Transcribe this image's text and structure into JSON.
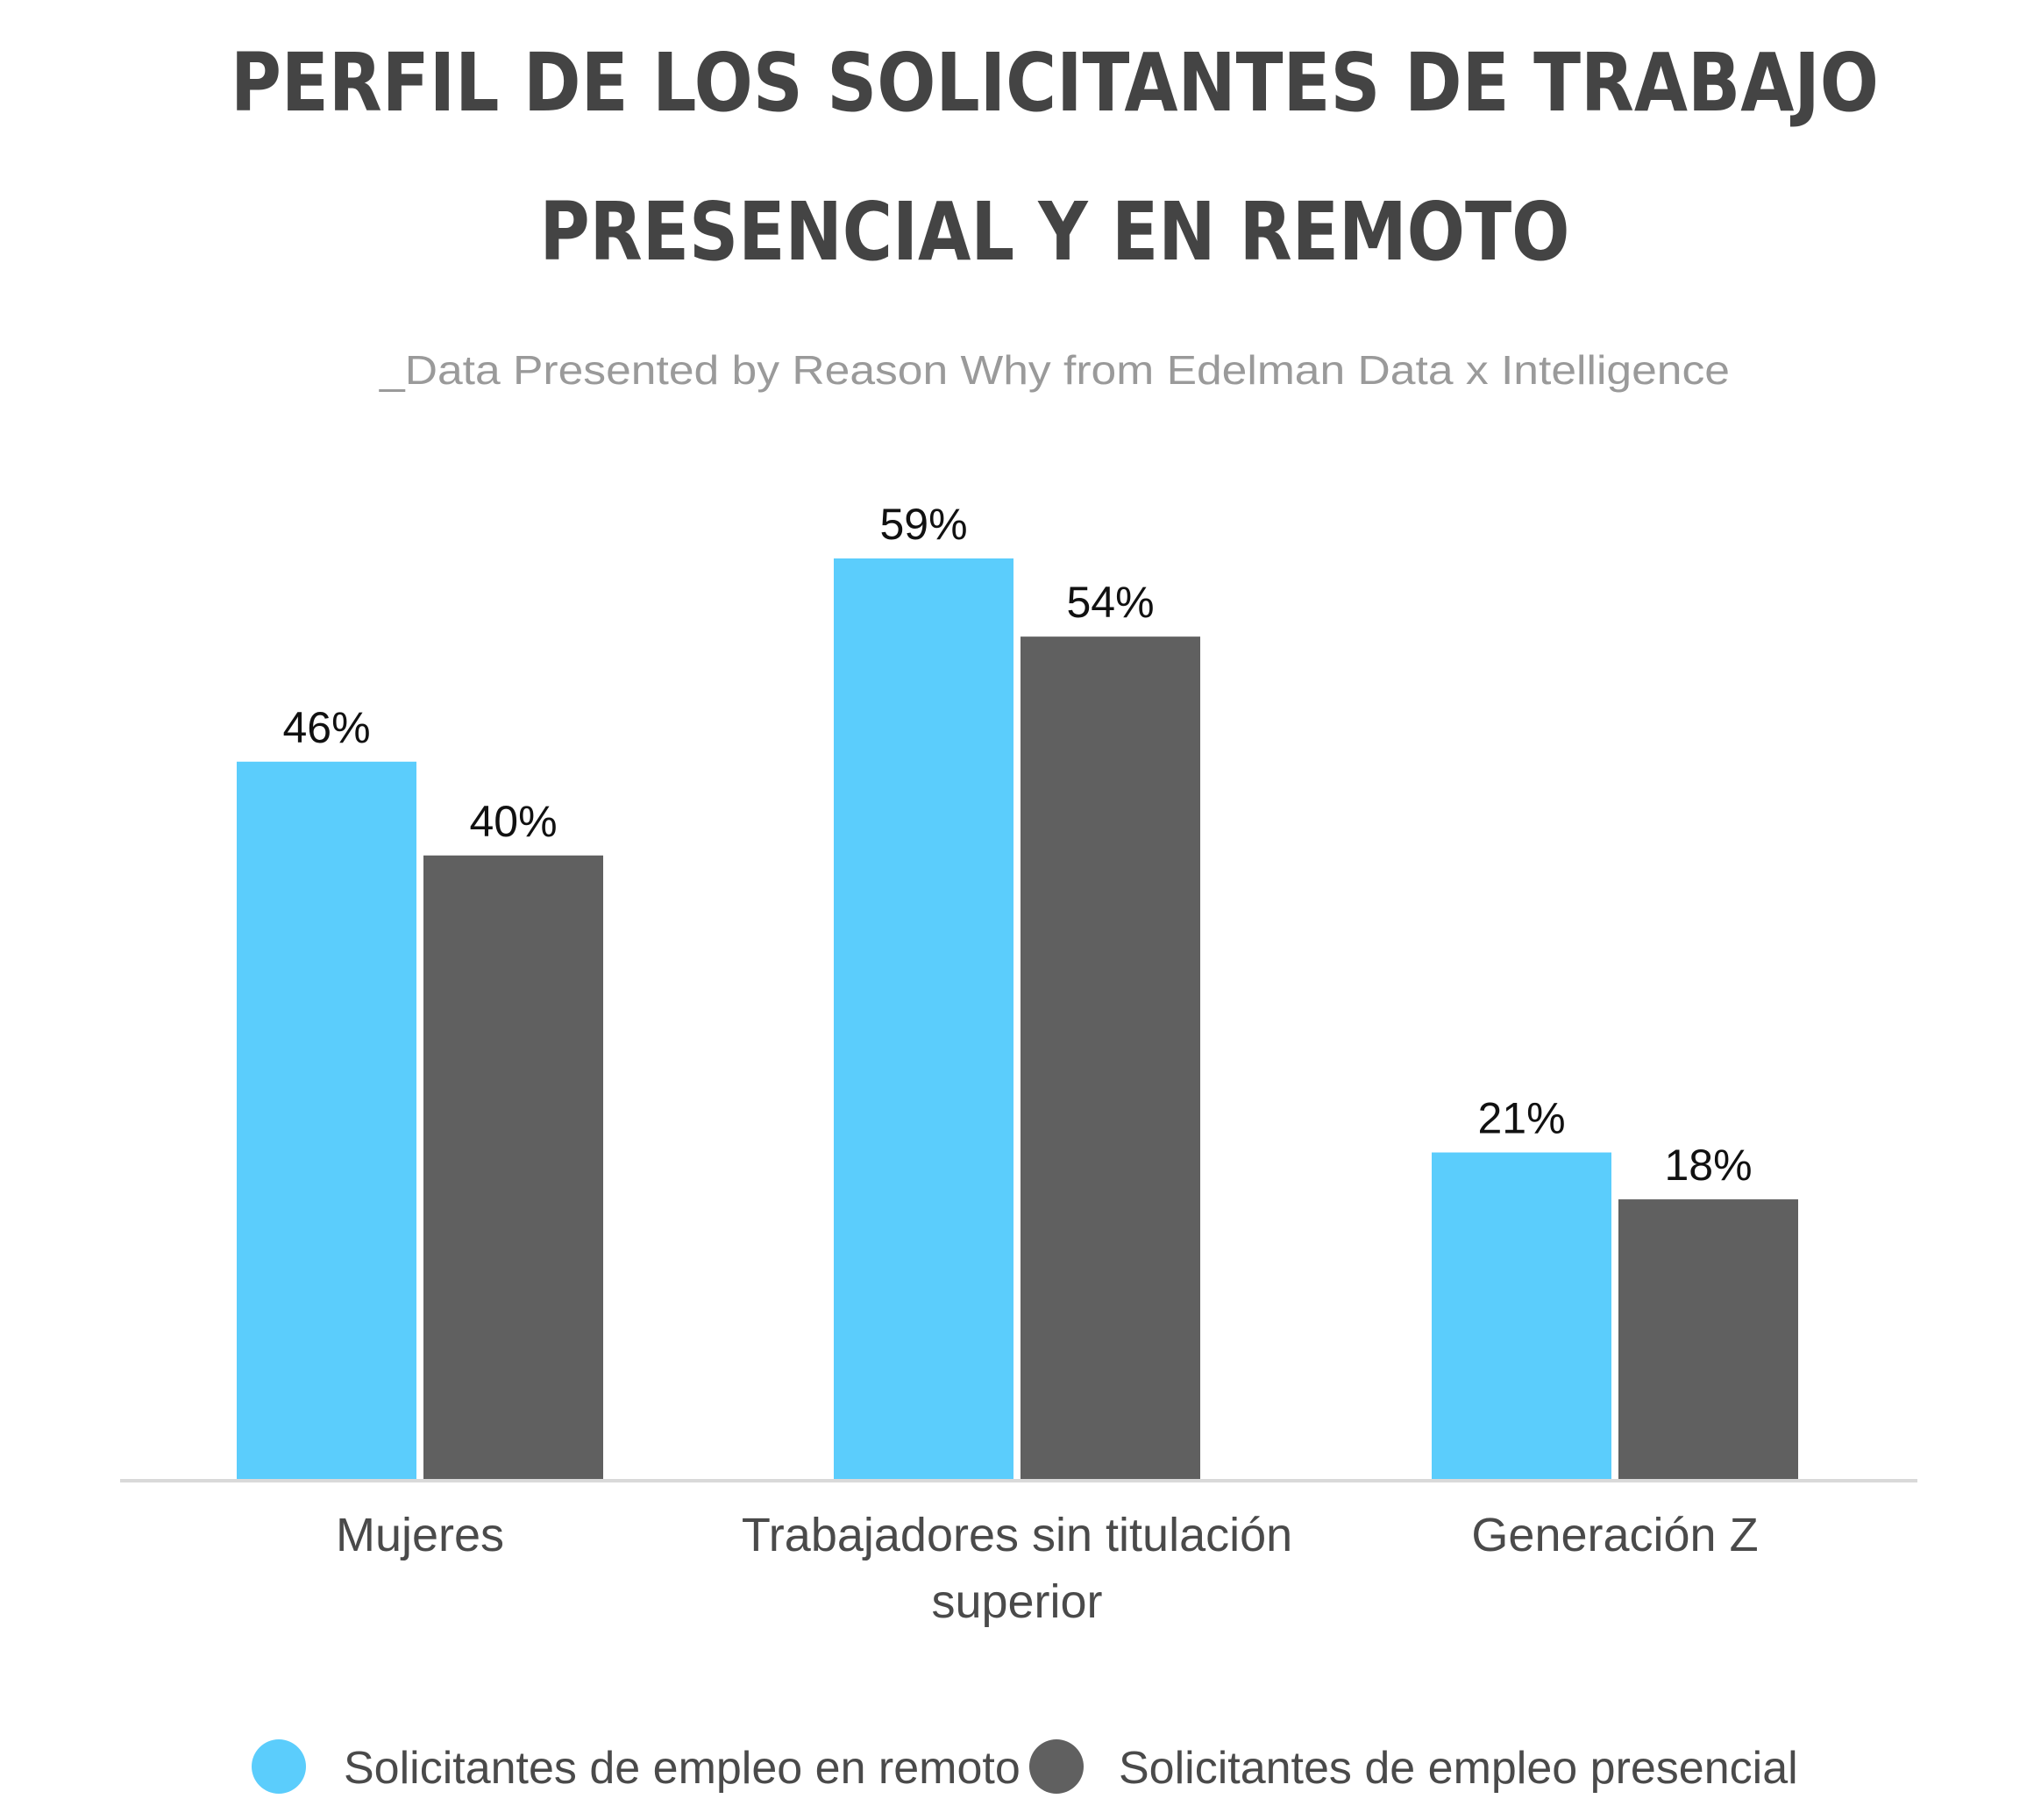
{
  "header": {
    "title_line1": "PERFIL DE LOS SOLICITANTES DE TRABAJO",
    "title_line2": "PRESENCIAL Y EN REMOTO",
    "subtitle": "_Data Presented by Reason Why from Edelman Data x Intelligence"
  },
  "chart_data": {
    "type": "bar",
    "title": "PERFIL DE LOS SOLICITANTES DE TRABAJO PRESENCIAL Y EN REMOTO",
    "subtitle": "_Data Presented by Reason Why from Edelman Data x Intelligence",
    "categories": [
      [
        "Mujeres"
      ],
      [
        "Trabajadores sin titulación",
        "superior"
      ],
      [
        "Generación Z"
      ]
    ],
    "series": [
      {
        "name": "Solicitantes de empleo en remoto",
        "values": [
          46,
          59,
          21
        ],
        "labels": [
          "46%",
          "59%",
          "21%"
        ],
        "color": "#5bcdfc"
      },
      {
        "name": "Solicitantes de empleo presencial",
        "values": [
          40,
          54,
          18
        ],
        "labels": [
          "40%",
          "54%",
          "18%"
        ],
        "color": "#606060"
      }
    ],
    "xlabel": "",
    "ylabel": "",
    "ylim": [
      0,
      59
    ],
    "grid": false,
    "legend_position": "bottom"
  },
  "colors": {
    "remote": "#5bcdfc",
    "onsite": "#606060",
    "axis": "#d9d9d9",
    "title": "#444444",
    "subtitle": "#9a9a9a"
  }
}
